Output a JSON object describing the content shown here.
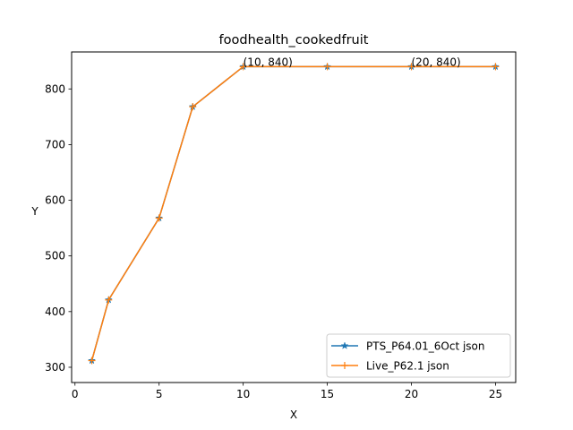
{
  "chart_data": {
    "type": "line",
    "title": "foodhealth_cookedfruit",
    "xlabel": "X",
    "ylabel": "Y",
    "xlim": [
      -0.2,
      26.2
    ],
    "ylim": [
      272.6,
      866.4
    ],
    "xticks": [
      0,
      5,
      10,
      15,
      20,
      25
    ],
    "yticks": [
      300,
      400,
      500,
      600,
      700,
      800
    ],
    "grid": false,
    "legend_position": "lower right",
    "series": [
      {
        "name": "PTS_P64.01_6Oct json",
        "color": "#1f77b4",
        "marker": "star",
        "x": [
          1,
          2,
          5,
          7,
          10,
          15,
          20,
          25
        ],
        "y": [
          312,
          421,
          568,
          768,
          840,
          840,
          840,
          840
        ]
      },
      {
        "name": "Live_P62.1 json",
        "color": "#ff7f0e",
        "marker": "plus",
        "x": [
          1,
          2,
          5,
          7,
          10,
          15,
          20,
          25
        ],
        "y": [
          312,
          421,
          568,
          768,
          840,
          840,
          840,
          840
        ]
      }
    ],
    "annotations": [
      {
        "text": "(10, 840)",
        "x": 10,
        "y": 840
      },
      {
        "text": "(20, 840)",
        "x": 20,
        "y": 840
      }
    ]
  }
}
